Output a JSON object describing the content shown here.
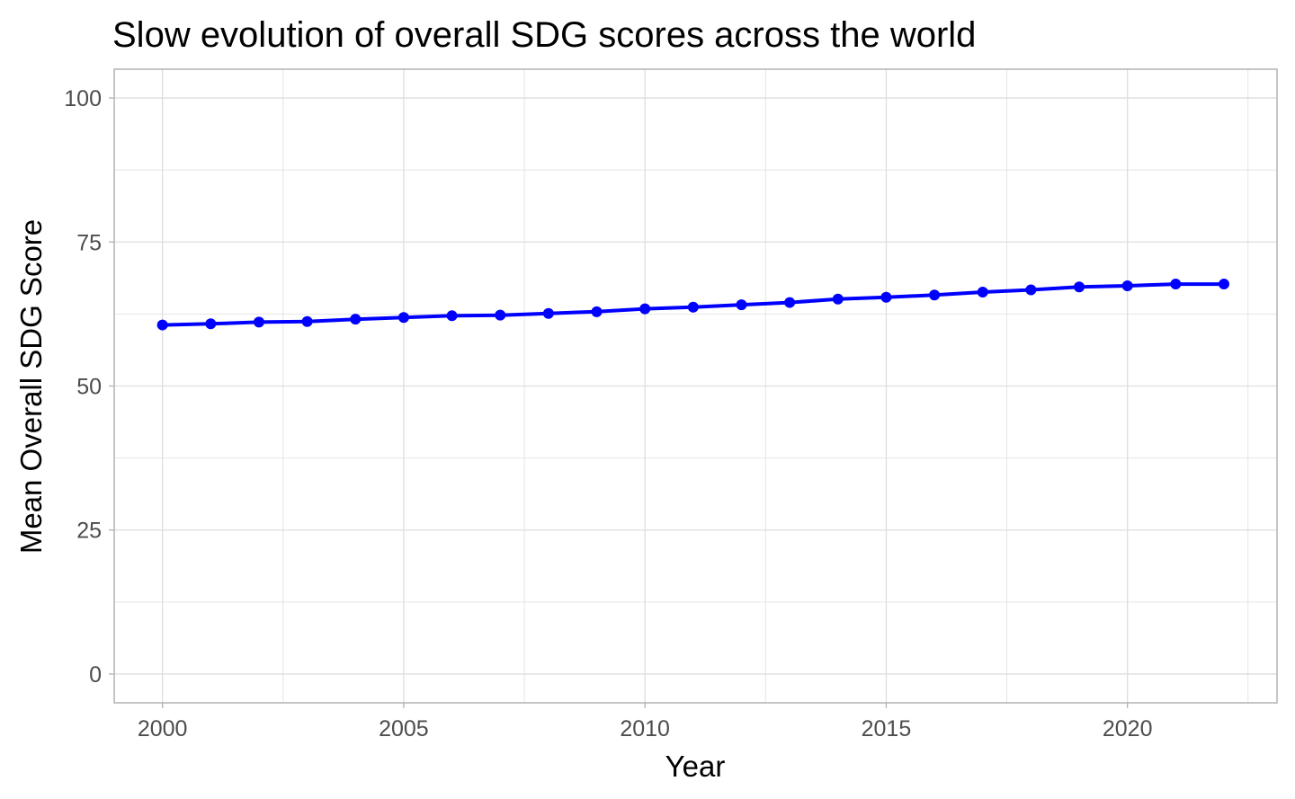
{
  "chart_data": {
    "type": "line",
    "title": "Slow evolution of overall SDG scores across the world",
    "xlabel": "Year",
    "ylabel": "Mean Overall SDG Score",
    "xlim": [
      1999,
      2023.1
    ],
    "ylim": [
      -5,
      105
    ],
    "x_ticks": [
      2000,
      2005,
      2010,
      2015,
      2020
    ],
    "x_tick_labels": [
      "2000",
      "2005",
      "2010",
      "2015",
      "2020"
    ],
    "y_ticks": [
      0,
      25,
      50,
      75,
      100
    ],
    "y_tick_labels": [
      "0",
      "25",
      "50",
      "75",
      "100"
    ],
    "grid": true,
    "legend": "none",
    "line_color": "#0000FF",
    "grid_color": "#DEDEDE",
    "border_color": "#B3B3B3",
    "series": [
      {
        "x": [
          2000,
          2001,
          2002,
          2003,
          2004,
          2005,
          2006,
          2007,
          2008,
          2009,
          2010,
          2011,
          2012,
          2013,
          2014,
          2015,
          2016,
          2017,
          2018,
          2019,
          2020,
          2021,
          2022
        ],
        "values": [
          60.6,
          60.8,
          61.1,
          61.2,
          61.6,
          61.9,
          62.2,
          62.3,
          62.6,
          62.9,
          63.4,
          63.7,
          64.1,
          64.5,
          65.1,
          65.4,
          65.8,
          66.3,
          66.7,
          67.2,
          67.4,
          67.7,
          67.7
        ]
      }
    ]
  }
}
